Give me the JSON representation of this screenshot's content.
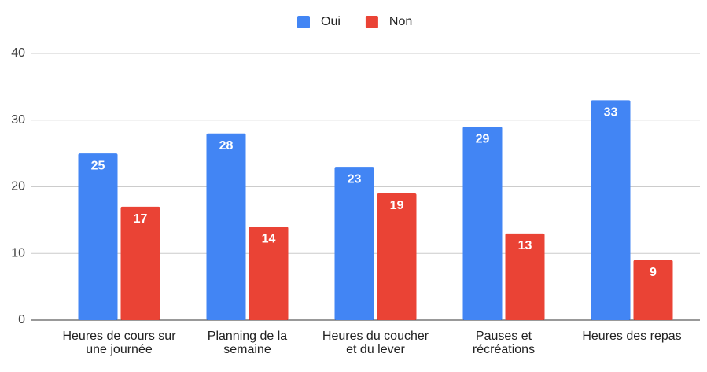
{
  "chart_data": {
    "type": "bar",
    "categories": [
      "Heures de cours sur une journée",
      "Planning de la semaine",
      "Heures du coucher et du lever",
      "Pauses et récréations",
      "Heures des repas"
    ],
    "series": [
      {
        "name": "Oui",
        "color": "#4285f4",
        "values": [
          25,
          28,
          23,
          29,
          33
        ]
      },
      {
        "name": "Non",
        "color": "#ea4335",
        "values": [
          17,
          14,
          19,
          13,
          9
        ]
      }
    ],
    "ylim": [
      0,
      40
    ],
    "yticks": [
      0,
      10,
      20,
      30,
      40
    ],
    "grid": true,
    "legend": "top"
  }
}
